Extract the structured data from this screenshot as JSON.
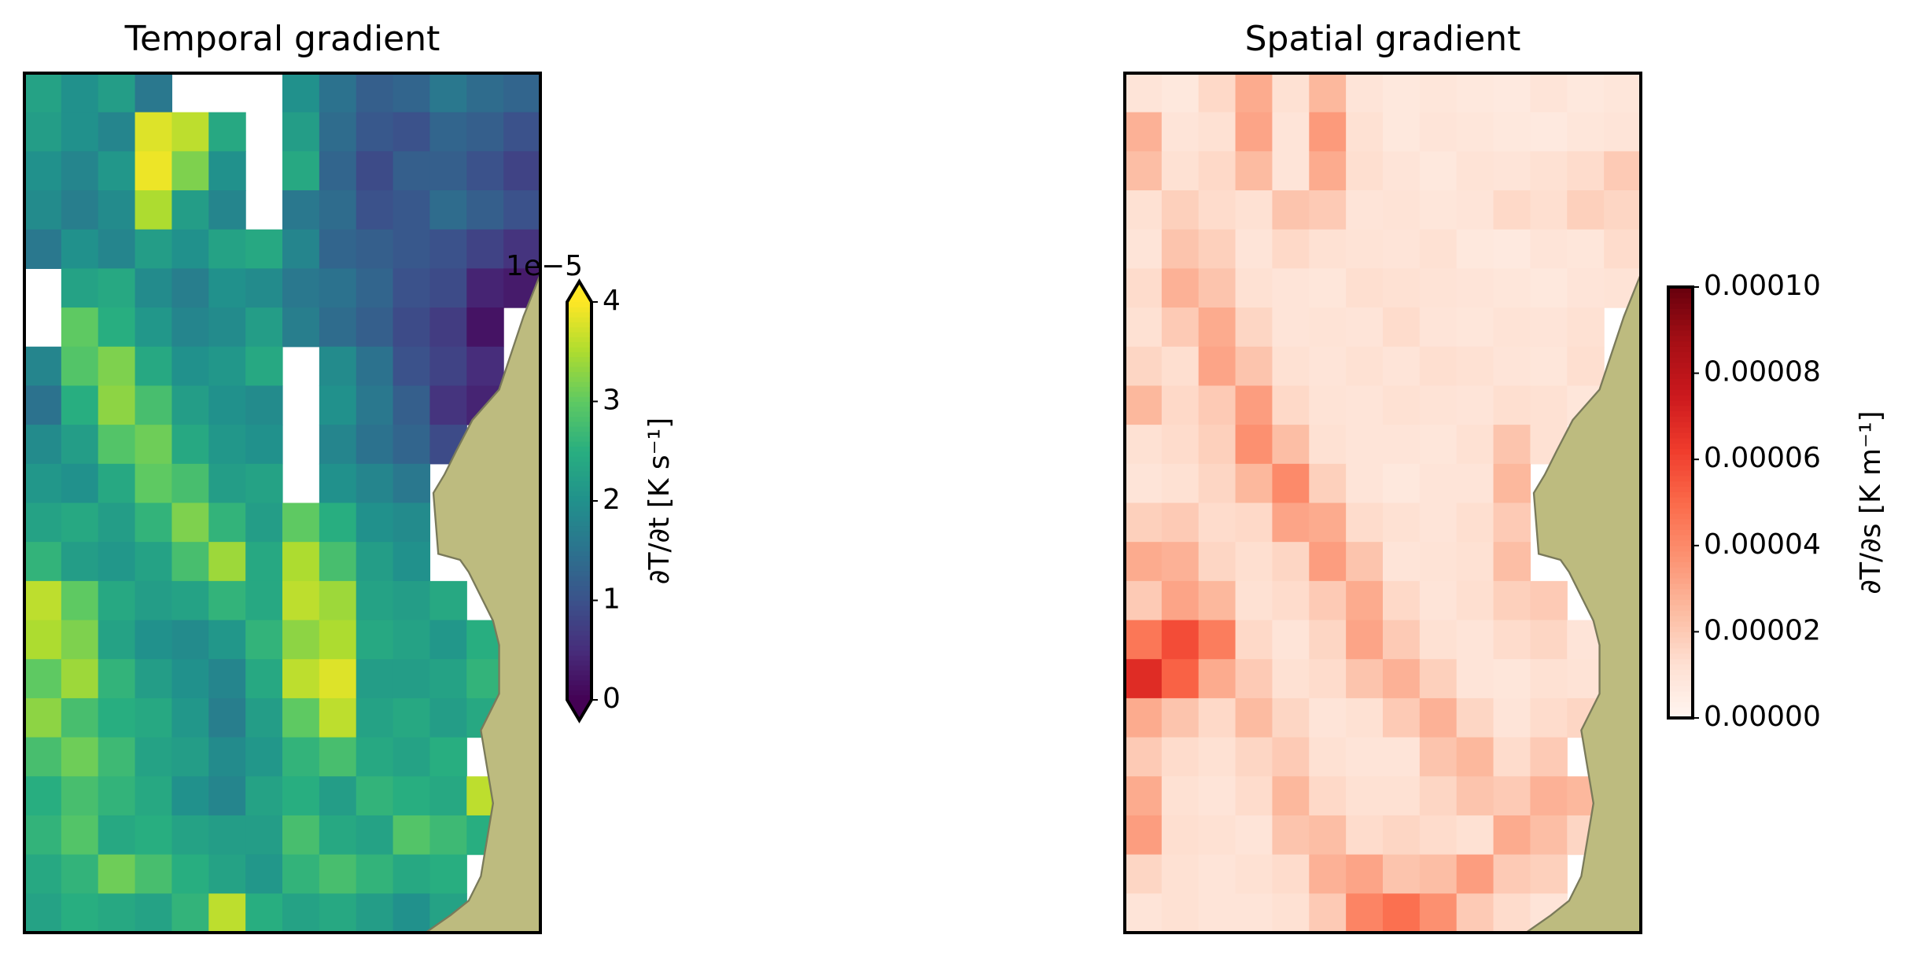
{
  "chart_data": [
    {
      "type": "heatmap",
      "title": "Temporal gradient",
      "colormap": "viridis",
      "vlim": [
        0,
        4
      ],
      "extend": "both",
      "colorbar": {
        "label": "∂T/∂t [K s⁻¹]",
        "offset_label": "1e−5",
        "ticks": [
          0,
          1,
          2,
          3,
          4
        ]
      },
      "values": [
        [
          2.3,
          2.0,
          2.2,
          1.6,
          null,
          null,
          null,
          2.0,
          1.5,
          1.2,
          1.3,
          1.6,
          1.4,
          1.3
        ],
        [
          2.2,
          2.0,
          1.8,
          3.8,
          3.6,
          2.4,
          null,
          2.2,
          1.4,
          1.1,
          1.0,
          1.3,
          1.2,
          1.0
        ],
        [
          2.0,
          1.8,
          2.1,
          3.9,
          3.2,
          2.0,
          null,
          2.4,
          1.3,
          0.9,
          1.2,
          1.2,
          1.0,
          0.8
        ],
        [
          1.9,
          1.7,
          1.9,
          3.5,
          2.2,
          1.8,
          null,
          1.6,
          1.4,
          1.0,
          1.1,
          1.4,
          1.2,
          1.0
        ],
        [
          1.6,
          2.0,
          1.8,
          2.2,
          2.0,
          2.3,
          2.4,
          1.8,
          1.3,
          1.2,
          1.1,
          1.0,
          0.8,
          0.6
        ],
        [
          null,
          2.3,
          2.4,
          1.9,
          1.7,
          2.0,
          1.9,
          1.6,
          1.5,
          1.3,
          1.0,
          0.9,
          0.4,
          0.3
        ],
        [
          null,
          3.0,
          2.5,
          2.1,
          1.8,
          1.9,
          2.2,
          1.7,
          1.4,
          1.2,
          0.9,
          0.7,
          0.2,
          null
        ],
        [
          1.8,
          2.9,
          3.2,
          2.4,
          2.0,
          2.1,
          2.4,
          null,
          1.9,
          1.5,
          1.0,
          0.8,
          0.5,
          null
        ],
        [
          1.5,
          2.5,
          3.3,
          2.8,
          2.2,
          2.0,
          1.9,
          null,
          2.0,
          1.6,
          1.2,
          0.6,
          0.4,
          null
        ],
        [
          1.9,
          2.2,
          2.9,
          3.1,
          2.4,
          2.1,
          2.0,
          null,
          1.8,
          1.5,
          1.3,
          0.9,
          null,
          null
        ],
        [
          2.1,
          2.0,
          2.4,
          3.0,
          2.8,
          2.2,
          2.3,
          null,
          2.0,
          1.8,
          1.6,
          null,
          null,
          null
        ],
        [
          2.3,
          2.4,
          2.2,
          2.6,
          3.2,
          2.6,
          2.2,
          3.0,
          2.5,
          2.0,
          1.9,
          null,
          null,
          null
        ],
        [
          2.6,
          2.2,
          2.1,
          2.3,
          2.8,
          3.4,
          2.4,
          3.5,
          2.8,
          2.2,
          2.0,
          null,
          null,
          null
        ],
        [
          3.6,
          3.0,
          2.4,
          2.2,
          2.3,
          2.6,
          2.4,
          3.6,
          3.4,
          2.3,
          2.2,
          2.4,
          null,
          null
        ],
        [
          3.5,
          3.2,
          2.3,
          2.0,
          1.9,
          2.1,
          2.6,
          3.3,
          3.5,
          2.4,
          2.3,
          2.1,
          2.5,
          null
        ],
        [
          3.0,
          3.4,
          2.6,
          2.2,
          2.0,
          1.8,
          2.4,
          3.6,
          3.8,
          2.2,
          2.2,
          2.3,
          2.6,
          null
        ],
        [
          3.3,
          2.8,
          2.5,
          2.4,
          2.1,
          1.7,
          2.2,
          3.0,
          3.6,
          2.3,
          2.4,
          2.2,
          2.4,
          null
        ],
        [
          2.8,
          3.1,
          2.7,
          2.3,
          2.2,
          1.9,
          2.1,
          2.6,
          2.8,
          2.4,
          2.3,
          2.5,
          null,
          null
        ],
        [
          2.5,
          2.8,
          2.6,
          2.4,
          2.0,
          1.8,
          2.3,
          2.5,
          2.2,
          2.6,
          2.5,
          2.4,
          3.6,
          null
        ],
        [
          2.6,
          2.9,
          2.4,
          2.5,
          2.3,
          2.2,
          2.2,
          2.8,
          2.4,
          2.3,
          2.9,
          2.7,
          2.5,
          null
        ],
        [
          2.4,
          2.6,
          3.1,
          2.8,
          2.5,
          2.3,
          2.1,
          2.6,
          2.8,
          2.6,
          2.4,
          2.5,
          null,
          null
        ],
        [
          2.3,
          2.5,
          2.4,
          2.3,
          2.6,
          3.6,
          2.5,
          2.3,
          2.4,
          2.2,
          2.0,
          2.3,
          null,
          null
        ]
      ]
    },
    {
      "type": "heatmap",
      "title": "Spatial gradient",
      "colormap": "Reds",
      "vlim": [
        0,
        0.0001
      ],
      "extend": "neither",
      "colorbar": {
        "label": "∂T/∂s [K m⁻¹]",
        "ticks": [
          {
            "value": 0,
            "label": "0.00000"
          },
          {
            "value": 2e-05,
            "label": "0.00002"
          },
          {
            "value": 4e-05,
            "label": "0.00004"
          },
          {
            "value": 6e-05,
            "label": "0.00006"
          },
          {
            "value": 8e-05,
            "label": "0.00008"
          },
          {
            "value": 0.0001,
            "label": "0.00010"
          }
        ]
      },
      "values": [
        [
          1e-05,
          8e-06,
          1.5e-05,
          3e-05,
          1.2e-05,
          2.6e-05,
          1e-05,
          8e-06,
          9e-06,
          8e-06,
          7e-06,
          1e-05,
          8e-06,
          9e-06
        ],
        [
          2.8e-05,
          1e-05,
          1.2e-05,
          3.2e-05,
          1e-05,
          3.5e-05,
          1.2e-05,
          8e-06,
          1e-05,
          9e-06,
          8e-06,
          7e-06,
          9e-06,
          1e-05
        ],
        [
          2.4e-05,
          1.2e-05,
          1.5e-05,
          2.5e-05,
          1e-05,
          3e-05,
          1.3e-05,
          1e-05,
          8e-06,
          1.1e-05,
          1e-05,
          1.2e-05,
          1.4e-05,
          2e-05
        ],
        [
          1.2e-05,
          1.8e-05,
          1.4e-05,
          1.2e-05,
          2.2e-05,
          2e-05,
          1e-05,
          1.1e-05,
          9e-06,
          1e-05,
          1.5e-05,
          1.3e-05,
          1.8e-05,
          1.6e-05
        ],
        [
          1e-05,
          2.2e-05,
          1.8e-05,
          1e-05,
          1.5e-05,
          1.2e-05,
          1.1e-05,
          1e-05,
          1.2e-05,
          8e-06,
          7e-06,
          1e-05,
          9e-06,
          1.4e-05
        ],
        [
          1.4e-05,
          2.8e-05,
          2.2e-05,
          1.2e-05,
          1e-05,
          9e-06,
          1.3e-05,
          1.2e-05,
          1.1e-05,
          1e-05,
          9e-06,
          8e-06,
          1e-05,
          1.1e-05
        ],
        [
          1.2e-05,
          2e-05,
          3e-05,
          1.6e-05,
          1e-05,
          1.1e-05,
          1e-05,
          1.4e-05,
          1e-05,
          9e-06,
          1.1e-05,
          1e-05,
          1.2e-05,
          null
        ],
        [
          1.6e-05,
          1.3e-05,
          3.2e-05,
          2.2e-05,
          1.2e-05,
          1e-05,
          1.2e-05,
          1e-05,
          1.3e-05,
          1.2e-05,
          1e-05,
          9e-06,
          1.3e-05,
          null
        ],
        [
          2.6e-05,
          1.5e-05,
          2e-05,
          3.4e-05,
          1.5e-05,
          1.1e-05,
          1e-05,
          1.2e-05,
          1.1e-05,
          1e-05,
          1.3e-05,
          1.2e-05,
          9e-06,
          null
        ],
        [
          1.2e-05,
          1.4e-05,
          1.8e-05,
          3.8e-05,
          2.4e-05,
          1.2e-05,
          1e-05,
          1e-05,
          9e-06,
          1.2e-05,
          2.2e-05,
          1.2e-05,
          null,
          null
        ],
        [
          1e-05,
          1.2e-05,
          1.6e-05,
          2.6e-05,
          4e-05,
          1.8e-05,
          1e-05,
          8e-06,
          1e-05,
          1e-05,
          2.6e-05,
          null,
          null,
          null
        ],
        [
          1.8e-05,
          2e-05,
          1.4e-05,
          1.5e-05,
          3.2e-05,
          3e-05,
          1.4e-05,
          1.2e-05,
          1e-05,
          1.3e-05,
          2e-05,
          null,
          null,
          null
        ],
        [
          3e-05,
          2.8e-05,
          1.6e-05,
          1.3e-05,
          1.6e-05,
          3.4e-05,
          2.2e-05,
          1e-05,
          1.1e-05,
          1.2e-05,
          2.4e-05,
          null,
          null,
          null
        ],
        [
          2e-05,
          3.2e-05,
          2.6e-05,
          1.2e-05,
          1.4e-05,
          2e-05,
          3e-05,
          1.5e-05,
          1e-05,
          1.3e-05,
          1.8e-05,
          2e-05,
          null,
          null
        ],
        [
          4.6e-05,
          5.8e-05,
          4.4e-05,
          1.5e-05,
          1e-05,
          1.6e-05,
          3.2e-05,
          2e-05,
          1.2e-05,
          1e-05,
          1.4e-05,
          1.6e-05,
          1e-05,
          null
        ],
        [
          6.8e-05,
          5.2e-05,
          3e-05,
          2e-05,
          1.2e-05,
          1.4e-05,
          2.2e-05,
          2.8e-05,
          1.8e-05,
          1e-05,
          9e-06,
          1.2e-05,
          1.1e-05,
          null
        ],
        [
          3e-05,
          2.2e-05,
          1.5e-05,
          2.5e-05,
          1.6e-05,
          1e-05,
          1.2e-05,
          2e-05,
          2.8e-05,
          1.6e-05,
          1e-05,
          1.4e-05,
          1.6e-05,
          null
        ],
        [
          2e-05,
          1.4e-05,
          1.2e-05,
          1.6e-05,
          2e-05,
          1.2e-05,
          1e-05,
          1e-05,
          2.2e-05,
          2.6e-05,
          1.4e-05,
          2e-05,
          null,
          null
        ],
        [
          3e-05,
          1.2e-05,
          1e-05,
          1.4e-05,
          2.6e-05,
          1.5e-05,
          1.2e-05,
          1.2e-05,
          1.6e-05,
          2.2e-05,
          2e-05,
          2.8e-05,
          2.6e-05,
          null
        ],
        [
          3.4e-05,
          1.3e-05,
          1.2e-05,
          1e-05,
          2.2e-05,
          2.4e-05,
          1.4e-05,
          1.6e-05,
          1.4e-05,
          1.2e-05,
          3e-05,
          2.4e-05,
          1.6e-05,
          null
        ],
        [
          1.6e-05,
          1.2e-05,
          1e-05,
          1.2e-05,
          1.4e-05,
          2.8e-05,
          3.2e-05,
          2.2e-05,
          2.4e-05,
          3.4e-05,
          2e-05,
          1.8e-05,
          null,
          null
        ],
        [
          1e-05,
          1.2e-05,
          1e-05,
          1e-05,
          1.2e-05,
          2e-05,
          4.2e-05,
          4.8e-05,
          3.8e-05,
          2e-05,
          1.4e-05,
          1e-05,
          null,
          null
        ]
      ]
    }
  ]
}
